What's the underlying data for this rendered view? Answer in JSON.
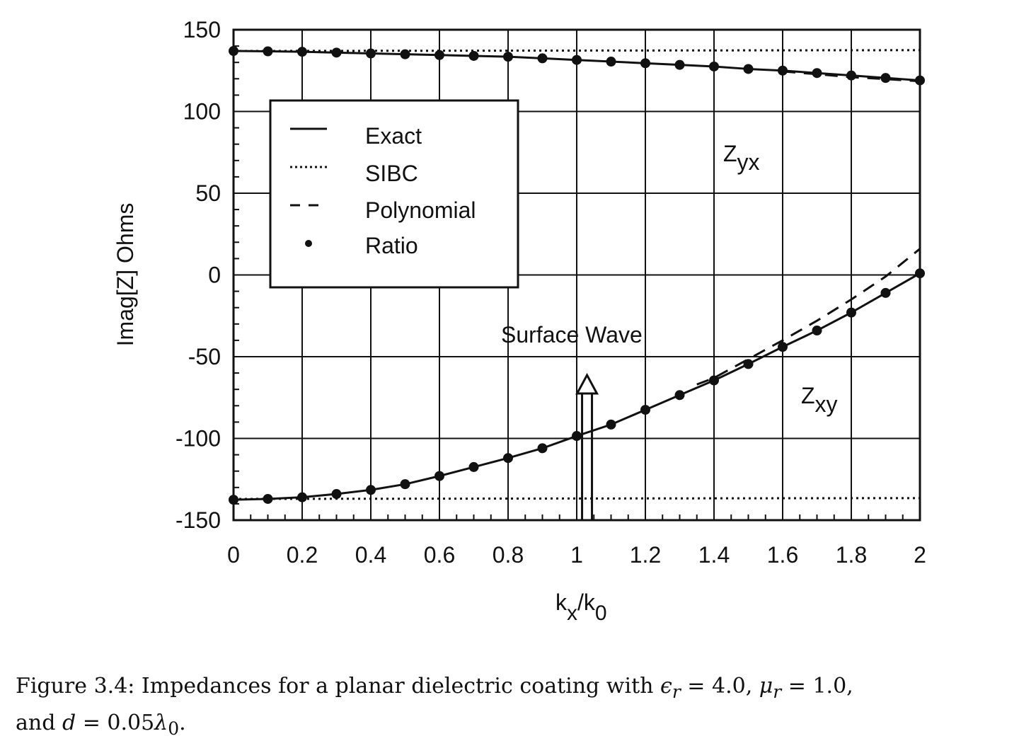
{
  "chart_data": {
    "type": "line",
    "title": "",
    "xlabel": {
      "main": "k",
      "sub": "x",
      "sep": "/k",
      "sub2": "0"
    },
    "ylabel": "Imag[Z] Ohms",
    "xlim": [
      0,
      2
    ],
    "ylim": [
      -150,
      150
    ],
    "xticks": [
      0,
      0.2,
      0.4,
      0.6,
      0.8,
      1,
      1.2,
      1.4,
      1.6,
      1.8,
      2
    ],
    "xtick_labels": [
      "0",
      "0.2",
      "0.4",
      "0.6",
      "0.8",
      "1",
      "1.2",
      "1.4",
      "1.6",
      "1.8",
      "2"
    ],
    "yticks": [
      -150,
      -100,
      -50,
      0,
      50,
      100,
      150
    ],
    "ytick_labels": [
      "-150",
      "-100",
      "-50",
      "0",
      "50",
      "100",
      "150"
    ],
    "grid": true,
    "legend_position": "upper-left",
    "legend": [
      {
        "label": "Exact",
        "style": "solid"
      },
      {
        "label": "SIBC",
        "style": "dotted"
      },
      {
        "label": "Polynomial",
        "style": "dashed"
      },
      {
        "label": "Ratio",
        "style": "dot-marker"
      }
    ],
    "annotations": {
      "zyx": {
        "main": "Z",
        "sub": "yx"
      },
      "zxy": {
        "main": "Z",
        "sub": "xy"
      },
      "surface_wave": {
        "text": "Surface Wave",
        "x": 1.03
      }
    },
    "series": [
      {
        "group": "Zyx",
        "style": "solid",
        "x": [
          0,
          0.1,
          0.2,
          0.3,
          0.4,
          0.5,
          0.6,
          0.7,
          0.8,
          0.9,
          1.0,
          1.1,
          1.2,
          1.3,
          1.4,
          1.5,
          1.6,
          1.7,
          1.8,
          1.9,
          2.0
        ],
        "y": [
          137,
          136.8,
          136.5,
          136,
          135.5,
          135,
          134.5,
          134,
          133.5,
          132.5,
          131.5,
          130.5,
          129.5,
          128.5,
          127.5,
          126,
          125,
          123.5,
          122,
          120.5,
          119
        ]
      },
      {
        "group": "Zyx",
        "style": "dotted",
        "x": [
          0,
          2
        ],
        "y": [
          137,
          137.5
        ]
      },
      {
        "group": "Zyx",
        "style": "dashed",
        "x": [
          1.6,
          1.7,
          1.8,
          1.9,
          2.0
        ],
        "y": [
          124.5,
          122.8,
          121,
          119.8,
          118.5
        ]
      },
      {
        "group": "Zyx",
        "style": "dot-marker",
        "x": [
          0,
          0.1,
          0.2,
          0.3,
          0.4,
          0.5,
          0.6,
          0.7,
          0.8,
          0.9,
          1.0,
          1.1,
          1.2,
          1.3,
          1.4,
          1.5,
          1.6,
          1.7,
          1.8,
          1.9,
          2.0
        ],
        "y": [
          137,
          136.8,
          136.5,
          136,
          135.5,
          135,
          134.5,
          134,
          133.5,
          132.5,
          131.5,
          130.5,
          129.5,
          128.5,
          127.5,
          126,
          125,
          123.5,
          122,
          120.5,
          119
        ]
      },
      {
        "group": "Zxy",
        "style": "solid",
        "x": [
          0,
          0.1,
          0.2,
          0.3,
          0.4,
          0.5,
          0.6,
          0.7,
          0.8,
          0.9,
          1.0,
          1.1,
          1.2,
          1.3,
          1.4,
          1.5,
          1.6,
          1.7,
          1.8,
          1.9,
          2.0
        ],
        "y": [
          -137.5,
          -137,
          -136,
          -134,
          -131.5,
          -128,
          -123,
          -117.5,
          -112,
          -106,
          -98.5,
          -91.5,
          -82.5,
          -73.5,
          -64.5,
          -54.5,
          -44,
          -34,
          -23,
          -11,
          1
        ]
      },
      {
        "group": "Zxy",
        "style": "dotted",
        "x": [
          0,
          2
        ],
        "y": [
          -137,
          -136.5
        ]
      },
      {
        "group": "Zxy",
        "style": "dashed",
        "x": [
          1.35,
          1.4,
          1.5,
          1.6,
          1.7,
          1.8,
          1.9,
          2.0
        ],
        "y": [
          -67,
          -63,
          -51.5,
          -40,
          -28,
          -15,
          -1,
          16
        ]
      },
      {
        "group": "Zxy",
        "style": "dot-marker",
        "x": [
          0,
          0.1,
          0.2,
          0.3,
          0.4,
          0.5,
          0.6,
          0.7,
          0.8,
          0.9,
          1.0,
          1.1,
          1.2,
          1.3,
          1.4,
          1.5,
          1.6,
          1.7,
          1.8,
          1.9,
          2.0
        ],
        "y": [
          -137.5,
          -137,
          -136,
          -134,
          -131.5,
          -128,
          -123,
          -117.5,
          -112,
          -106,
          -98.5,
          -91.5,
          -82.5,
          -73.5,
          -64.5,
          -54.5,
          -44,
          -34,
          -23,
          -11,
          1
        ]
      }
    ]
  },
  "caption": {
    "prefix": "Figure 3.4: Impedances for a planar dielectric coating with",
    "eps_r": "4.0",
    "mu_r": "1.0",
    "conj": "and",
    "d_value": "0.05"
  }
}
